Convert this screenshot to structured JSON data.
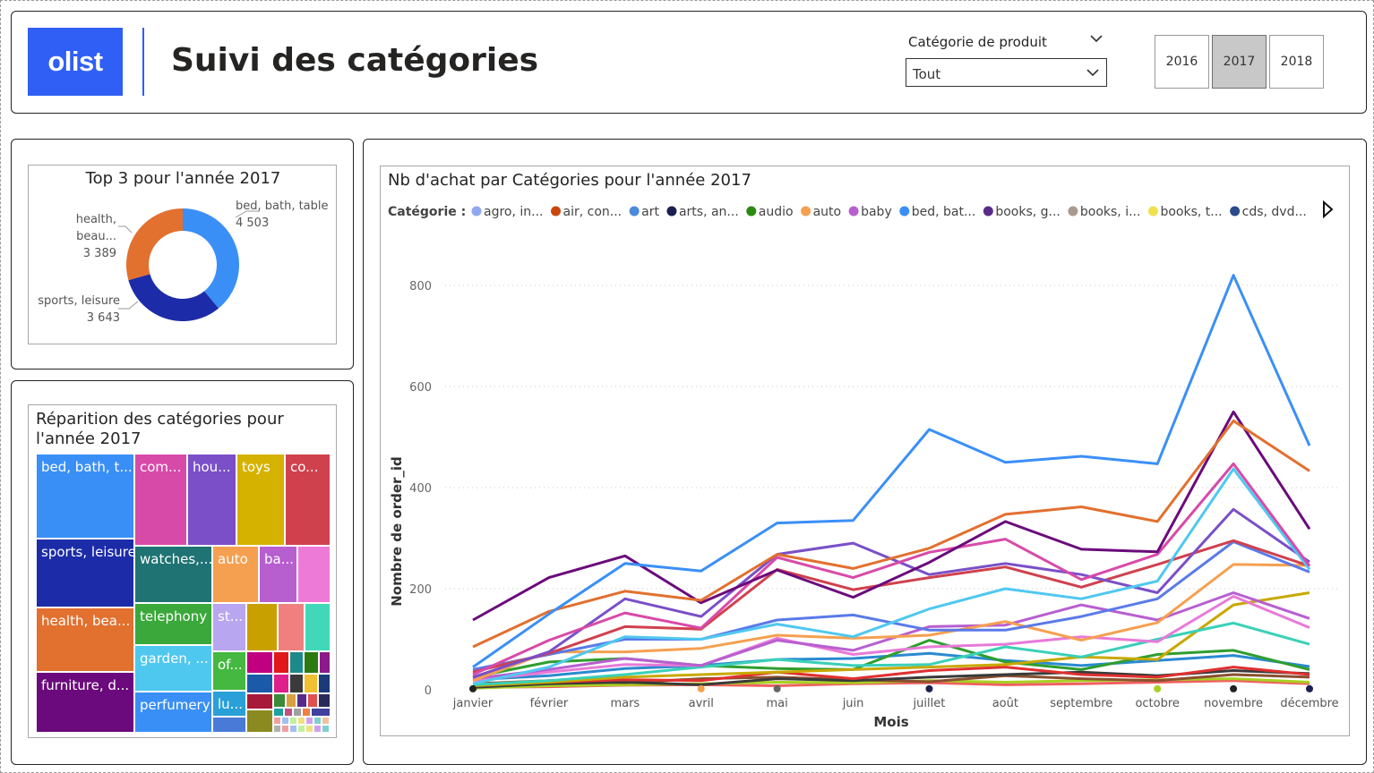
{
  "header": {
    "logo_text": "olist",
    "title": "Suivi des catégories",
    "slicer_label": "Catégorie de produit",
    "slicer_value": "Tout",
    "years": [
      "2016",
      "2017",
      "2018"
    ],
    "selected_year": "2017"
  },
  "donut": {
    "title": "Top 3 pour l'année 2017",
    "slices": [
      {
        "label": "bed, bath, table",
        "value_text": "4 503",
        "value": 4503,
        "color": "#3a8ff7"
      },
      {
        "label": "sports, leisure",
        "value_text": "3 643",
        "value": 3643,
        "color": "#1c2ca8"
      },
      {
        "label": "health, beau...",
        "value_text": "3 389",
        "value": 3389,
        "color": "#e2702f"
      }
    ]
  },
  "treemap": {
    "title_line1": "Réparition des catégories pour",
    "title_line2": "l'année 2017",
    "labeled_cells": [
      {
        "label": "bed, bath, t...",
        "color": "#3a8ff7"
      },
      {
        "label": "sports, leisure",
        "color": "#1c2ca8"
      },
      {
        "label": "health, bea...",
        "color": "#e2702f"
      },
      {
        "label": "furniture, d...",
        "color": "#6b0a7c"
      },
      {
        "label": "com...",
        "color": "#d84aa8"
      },
      {
        "label": "hou...",
        "color": "#7a4fc8"
      },
      {
        "label": "toys",
        "color": "#d6b200"
      },
      {
        "label": "co...",
        "color": "#d0414e"
      },
      {
        "label": "watches,...",
        "color": "#1f7373"
      },
      {
        "label": "auto",
        "color": "#f5a050"
      },
      {
        "label": "ba...",
        "color": "#b85fd0"
      },
      {
        "label": "telephony",
        "color": "#3aa83a"
      },
      {
        "label": "garden, ...",
        "color": "#4fc8f0"
      },
      {
        "label": "perfumery",
        "color": "#3a8ff7"
      },
      {
        "label": "st...",
        "color": "#b8a6f0"
      },
      {
        "label": "of...",
        "color": "#44b840"
      },
      {
        "label": "lu...",
        "color": "#2aa0d8"
      }
    ]
  },
  "line_chart": {
    "title": "Nb d'achat par Catégories pour l'année 2017",
    "legend_title": "Catégorie :",
    "legend": [
      {
        "label": "agro, in...",
        "color": "#8fa8f0"
      },
      {
        "label": "air, con...",
        "color": "#c8480c"
      },
      {
        "label": "art",
        "color": "#4a8ad8"
      },
      {
        "label": "arts, an...",
        "color": "#1a2050"
      },
      {
        "label": "audio",
        "color": "#2a8a10"
      },
      {
        "label": "auto",
        "color": "#f5a050"
      },
      {
        "label": "baby",
        "color": "#b85fd0"
      },
      {
        "label": "bed, bat...",
        "color": "#3a8ff7"
      },
      {
        "label": "books, g...",
        "color": "#5a2a8a"
      },
      {
        "label": "books, i...",
        "color": "#a89a90"
      },
      {
        "label": "books, t...",
        "color": "#f0e050"
      },
      {
        "label": "cds, dvd...",
        "color": "#2a4a8a"
      }
    ],
    "xlabel": "Mois",
    "ylabel": "Nombre de order_id"
  },
  "chart_data": {
    "type": "line",
    "title": "Nb d'achat par Catégories pour l'année 2017",
    "xlabel": "Mois",
    "ylabel": "Nombre de order_id",
    "ylim": [
      0,
      850
    ],
    "yticks": [
      0,
      200,
      400,
      600,
      800
    ],
    "grid": true,
    "legend_position": "top",
    "x": [
      "janvier",
      "février",
      "mars",
      "avril",
      "mai",
      "juin",
      "juillet",
      "août",
      "septembre",
      "octobre",
      "novembre",
      "décembre"
    ],
    "series": [
      {
        "name": "bed, bat...",
        "color": "#3a8ff7",
        "values": [
          45,
          150,
          250,
          235,
          330,
          335,
          515,
          450,
          462,
          447,
          820,
          483
        ]
      },
      {
        "color": "#e2702f",
        "values": [
          85,
          155,
          195,
          177,
          268,
          240,
          280,
          347,
          362,
          333,
          532,
          433
        ]
      },
      {
        "color": "#6b0a7c",
        "values": [
          138,
          222,
          265,
          172,
          237,
          183,
          252,
          333,
          278,
          273,
          550,
          318
        ]
      },
      {
        "color": "#d84aa8",
        "values": [
          30,
          98,
          152,
          122,
          262,
          222,
          272,
          298,
          218,
          268,
          447,
          245
        ]
      },
      {
        "color": "#4fc8f0",
        "values": [
          12,
          45,
          105,
          100,
          130,
          105,
          160,
          200,
          180,
          215,
          437,
          238
        ]
      },
      {
        "color": "#7a4fc8",
        "values": [
          25,
          75,
          180,
          145,
          268,
          290,
          228,
          250,
          228,
          192,
          357,
          253
        ]
      },
      {
        "color": "#d0414e",
        "values": [
          35,
          72,
          125,
          120,
          238,
          198,
          222,
          243,
          203,
          248,
          295,
          245
        ]
      },
      {
        "color": "#5a7ae8",
        "values": [
          40,
          70,
          100,
          100,
          138,
          148,
          118,
          118,
          145,
          180,
          293,
          233
        ]
      },
      {
        "color": "#f5a050",
        "values": [
          18,
          75,
          75,
          82,
          108,
          102,
          108,
          135,
          98,
          133,
          248,
          246
        ]
      },
      {
        "color": "#b85fd0",
        "values": [
          22,
          40,
          62,
          48,
          98,
          78,
          125,
          128,
          168,
          138,
          192,
          141
        ]
      },
      {
        "color": "#e87ad8",
        "values": [
          18,
          35,
          50,
          48,
          102,
          70,
          85,
          90,
          105,
          95,
          185,
          123
        ]
      },
      {
        "color": "#3ad0b8",
        "values": [
          10,
          18,
          30,
          45,
          60,
          48,
          50,
          85,
          65,
          100,
          132,
          90
        ]
      },
      {
        "color": "#c8a800",
        "values": [
          8,
          15,
          25,
          30,
          35,
          40,
          45,
          50,
          65,
          60,
          168,
          192
        ]
      },
      {
        "color": "#2e9e2e",
        "values": [
          25,
          55,
          62,
          48,
          42,
          40,
          98,
          55,
          40,
          70,
          78,
          40
        ]
      },
      {
        "color": "#2a8ad0",
        "values": [
          20,
          28,
          42,
          48,
          60,
          62,
          72,
          58,
          48,
          58,
          68,
          46
        ]
      },
      {
        "color": "#e03030",
        "values": [
          10,
          15,
          20,
          18,
          35,
          22,
          38,
          45,
          30,
          25,
          45,
          30
        ]
      },
      {
        "color": "#3a3a3a",
        "values": [
          5,
          12,
          15,
          10,
          22,
          18,
          25,
          30,
          35,
          28,
          38,
          32
        ]
      },
      {
        "color": "#8a5030",
        "values": [
          12,
          18,
          14,
          22,
          25,
          20,
          16,
          28,
          22,
          18,
          30,
          25
        ]
      },
      {
        "color": "#a8d020",
        "values": [
          3,
          8,
          10,
          12,
          15,
          14,
          18,
          15,
          18,
          20,
          22,
          15
        ]
      },
      {
        "color": "#f06060",
        "values": [
          5,
          6,
          9,
          10,
          8,
          12,
          14,
          10,
          12,
          15,
          18,
          12
        ]
      }
    ]
  }
}
